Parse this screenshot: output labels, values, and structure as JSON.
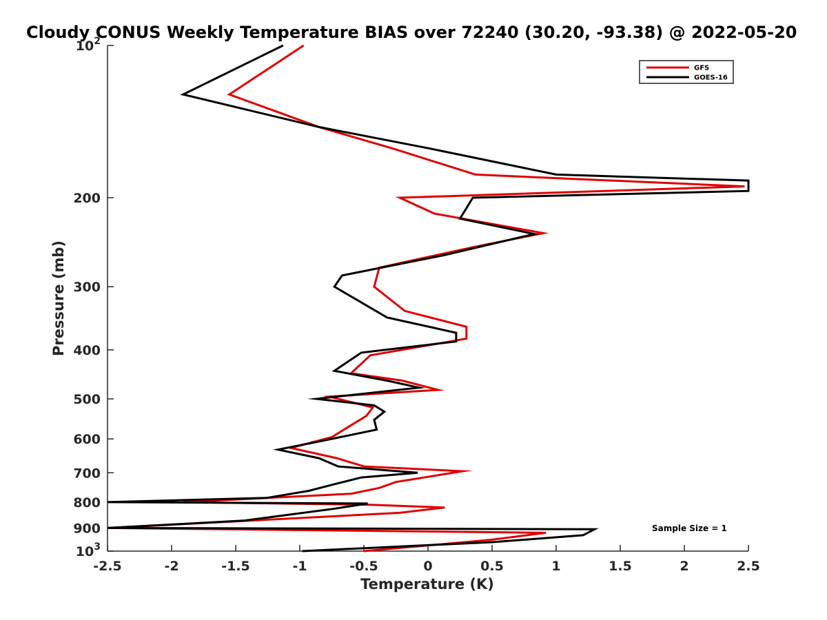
{
  "chart_data": {
    "type": "line",
    "title": "Cloudy CONUS Weekly Temperature BIAS over 72240 (30.20, -93.38) @ 2022-05-20",
    "xlabel": "Temperature (K)",
    "ylabel": "Pressure (mb)",
    "xlim": [
      -2.5,
      2.5
    ],
    "ylim": [
      100,
      1000
    ],
    "y_scale": "log",
    "y_reversed": true,
    "x_ticks": [
      -2.5,
      -2,
      -1.5,
      -1,
      -0.5,
      0,
      0.5,
      1,
      1.5,
      2,
      2.5
    ],
    "x_tick_labels": [
      "-2.5",
      "-2",
      "-1.5",
      "-1",
      "-0.5",
      "0",
      "0.5",
      "1",
      "1.5",
      "2",
      "2.5"
    ],
    "y_ticks": [
      100,
      200,
      300,
      400,
      500,
      600,
      700,
      800,
      900,
      1000
    ],
    "y_tick_labels": [
      {
        "base": "10",
        "sup": "2"
      },
      {
        "base": "200"
      },
      {
        "base": "300"
      },
      {
        "base": "400"
      },
      {
        "base": "500"
      },
      {
        "base": "600"
      },
      {
        "base": "700"
      },
      {
        "base": "800"
      },
      {
        "base": "900"
      },
      {
        "base": "10",
        "sup": "3"
      }
    ],
    "legend": {
      "position": "top-right",
      "entries": [
        "GFS",
        "GOES-16"
      ]
    },
    "annotation": "Sample Size = 1",
    "series": [
      {
        "name": "GFS",
        "color": "#e00000",
        "points": [
          [
            -0.97,
            100
          ],
          [
            -1.55,
            125
          ],
          [
            -0.85,
            145
          ],
          [
            -0.27,
            160
          ],
          [
            0.37,
            180
          ],
          [
            2.47,
            190
          ],
          [
            -0.22,
            200
          ],
          [
            0.05,
            215
          ],
          [
            0.9,
            235
          ],
          [
            0.37,
            250
          ],
          [
            -0.38,
            275
          ],
          [
            -0.42,
            300
          ],
          [
            -0.18,
            335
          ],
          [
            0.3,
            360
          ],
          [
            0.3,
            380
          ],
          [
            -0.45,
            410
          ],
          [
            -0.6,
            445
          ],
          [
            -0.2,
            460
          ],
          [
            0.08,
            480
          ],
          [
            -0.77,
            495
          ],
          [
            -0.43,
            520
          ],
          [
            -0.48,
            540
          ],
          [
            -0.75,
            595
          ],
          [
            -1.07,
            625
          ],
          [
            -0.71,
            655
          ],
          [
            -0.5,
            680
          ],
          [
            0.27,
            695
          ],
          [
            -0.25,
            730
          ],
          [
            -0.38,
            750
          ],
          [
            -0.6,
            770
          ],
          [
            -1.91,
            800
          ],
          [
            -0.45,
            810
          ],
          [
            0.13,
            820
          ],
          [
            -0.22,
            840
          ],
          [
            -2.49,
            900
          ],
          [
            0.92,
            920
          ],
          [
            0.49,
            950
          ],
          [
            -0.5,
            1000
          ]
        ]
      },
      {
        "name": "GOES-16",
        "color": "#000000",
        "points": [
          [
            -1.13,
            100
          ],
          [
            -1.91,
            125
          ],
          [
            -0.85,
            145
          ],
          [
            0.02,
            160
          ],
          [
            1.0,
            180
          ],
          [
            2.5,
            185
          ],
          [
            2.5,
            194
          ],
          [
            0.35,
            200
          ],
          [
            0.25,
            220
          ],
          [
            0.83,
            236
          ],
          [
            0.12,
            260
          ],
          [
            -0.67,
            285
          ],
          [
            -0.73,
            300
          ],
          [
            -0.32,
            345
          ],
          [
            0.22,
            370
          ],
          [
            0.22,
            385
          ],
          [
            -0.52,
            405
          ],
          [
            -0.73,
            440
          ],
          [
            -0.32,
            460
          ],
          [
            -0.07,
            475
          ],
          [
            -0.87,
            500
          ],
          [
            -0.42,
            515
          ],
          [
            -0.34,
            530
          ],
          [
            -0.42,
            550
          ],
          [
            -0.4,
            575
          ],
          [
            -0.82,
            605
          ],
          [
            -1.17,
            630
          ],
          [
            -0.85,
            655
          ],
          [
            -0.7,
            680
          ],
          [
            -0.08,
            700
          ],
          [
            -0.52,
            715
          ],
          [
            -0.71,
            735
          ],
          [
            -0.93,
            760
          ],
          [
            -1.26,
            785
          ],
          [
            -2.5,
            800
          ],
          [
            -0.47,
            805
          ],
          [
            -0.74,
            825
          ],
          [
            -1.43,
            870
          ],
          [
            -2.5,
            900
          ],
          [
            1.3,
            905
          ],
          [
            1.21,
            930
          ],
          [
            0.5,
            960
          ],
          [
            -0.98,
            1000
          ]
        ]
      }
    ]
  }
}
